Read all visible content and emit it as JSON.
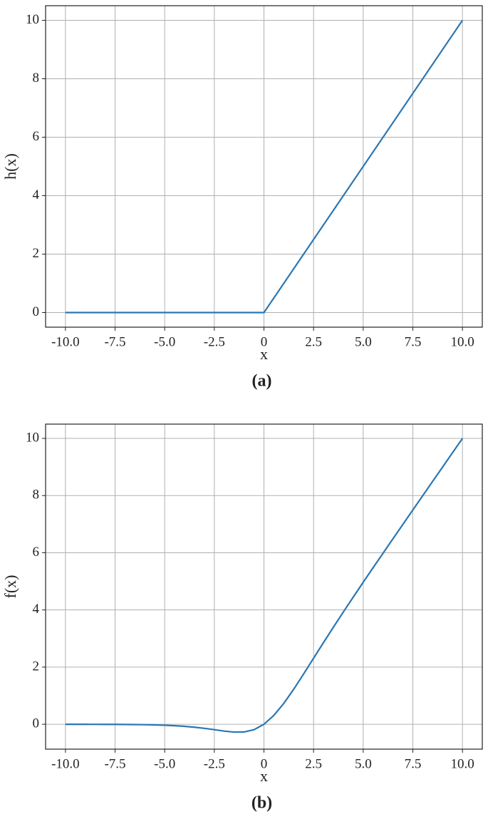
{
  "chart_data": [
    {
      "type": "line",
      "ylabel": "h(x)",
      "xlabel": "x",
      "caption": "(a)",
      "x": [
        -10,
        0,
        10
      ],
      "series": [
        {
          "color": "#2a77b4",
          "values": [
            0,
            0,
            10
          ]
        }
      ],
      "xlim": [
        -11,
        11
      ],
      "ylim": [
        -0.5,
        10.5
      ],
      "xticks": [
        {
          "value": -10,
          "label": "-10.0"
        },
        {
          "value": -7.5,
          "label": "-7.5"
        },
        {
          "value": -5,
          "label": "-5.0"
        },
        {
          "value": -2.5,
          "label": "-2.5"
        },
        0,
        2.5,
        {
          "value": 5,
          "label": "5.0"
        },
        7.5,
        {
          "value": 10,
          "label": "10.0"
        }
      ],
      "yticks": [
        0,
        2,
        4,
        6,
        8,
        10
      ],
      "grid": true
    },
    {
      "type": "line",
      "ylabel": "f(x)",
      "xlabel": "x",
      "caption": "(b)",
      "x": [
        -10,
        -9.5,
        -9,
        -8.5,
        -8,
        -7.5,
        -7,
        -6.5,
        -6,
        -5.5,
        -5,
        -4.5,
        -4,
        -3.5,
        -3,
        -2.5,
        -2,
        -1.5,
        -1,
        -0.5,
        0,
        0.5,
        1,
        1.5,
        2,
        2.5,
        3,
        3.5,
        4,
        4.5,
        5,
        5.5,
        6,
        6.5,
        7,
        7.5,
        8,
        8.5,
        9,
        9.5,
        10
      ],
      "series": [
        {
          "color": "#2a77b4",
          "values": [
            -0.0005,
            -0.0007,
            -0.0011,
            -0.0017,
            -0.0027,
            -0.0041,
            -0.0064,
            -0.0098,
            -0.0148,
            -0.0224,
            -0.0335,
            -0.0494,
            -0.0719,
            -0.1026,
            -0.1423,
            -0.1897,
            -0.2384,
            -0.2736,
            -0.2689,
            -0.1888,
            0,
            0.3112,
            0.7311,
            1.2264,
            1.7616,
            2.3103,
            2.8577,
            3.3974,
            3.9281,
            4.4506,
            4.9665,
            5.4776,
            5.9852,
            6.4902,
            6.9936,
            7.4959,
            7.9973,
            8.4983,
            8.9989,
            9.4993,
            9.9995
          ]
        }
      ],
      "xlim": [
        -11,
        11
      ],
      "ylim": [
        -0.87,
        10.5
      ],
      "xticks": [
        {
          "value": -10,
          "label": "-10.0"
        },
        {
          "value": -7.5,
          "label": "-7.5"
        },
        {
          "value": -5,
          "label": "-5.0"
        },
        {
          "value": -2.5,
          "label": "-2.5"
        },
        0,
        2.5,
        {
          "value": 5,
          "label": "5.0"
        },
        7.5,
        {
          "value": 10,
          "label": "10.0"
        }
      ],
      "yticks": [
        0,
        2,
        4,
        6,
        8,
        10
      ],
      "grid": true
    }
  ]
}
